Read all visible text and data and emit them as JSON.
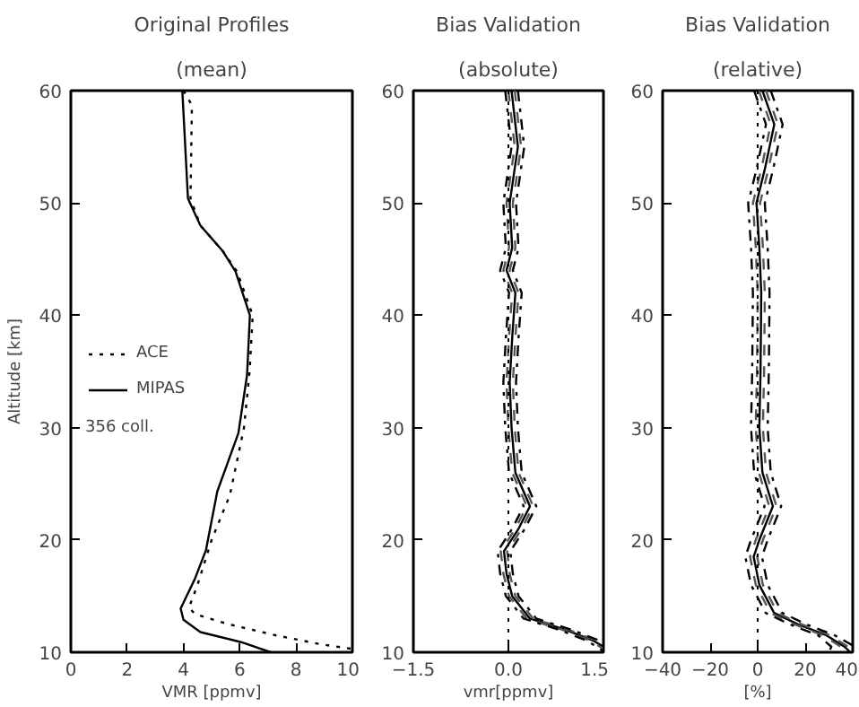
{
  "chart_data": [
    {
      "type": "line",
      "title": "Original Profiles",
      "subtitle": "(mean)",
      "xlabel": "VMR [ppmv]",
      "ylabel": "Altitude [km]",
      "xlim": [
        0,
        10
      ],
      "ylim": [
        10,
        60
      ],
      "xticks": [
        0,
        2,
        4,
        6,
        8,
        10
      ],
      "yticks": [
        10,
        20,
        30,
        40,
        50,
        60
      ],
      "legend": "left",
      "annotations": [
        "356 coll."
      ],
      "series": [
        {
          "name": "ACE",
          "color": "#000000",
          "line_style": "dotted",
          "x": [
            4.0,
            4.3,
            4.25,
            4.6,
            5.4,
            5.9,
            6.46,
            6.35,
            6.15,
            5.65,
            5.0,
            4.5,
            4.2,
            4.4,
            5.6,
            7.3,
            8.9,
            10.0
          ],
          "values": [
            60,
            58.7,
            50.4,
            48,
            45.7,
            43.9,
            40,
            35,
            30,
            24,
            20,
            16,
            14,
            13.4,
            12.5,
            11.5,
            10.7,
            10.3
          ]
        },
        {
          "name": "MIPAS",
          "color": "#000000",
          "line_style": "solid",
          "x": [
            3.96,
            4.16,
            4.6,
            5.4,
            5.85,
            6.36,
            6.26,
            5.95,
            5.2,
            5.0,
            4.8,
            4.4,
            3.9,
            4.0,
            4.6,
            6.05,
            7.1
          ],
          "values": [
            60,
            50.4,
            48,
            45.7,
            43.9,
            40,
            34.7,
            29.5,
            24.3,
            21.7,
            19.1,
            16.5,
            13.9,
            12.9,
            11.8,
            10.9,
            10
          ]
        }
      ]
    },
    {
      "type": "line",
      "title": "Bias Validation",
      "subtitle": "(absolute)",
      "xlabel": "vmr[ppmv]",
      "xlim": [
        -1.5,
        1.5
      ],
      "ylim": [
        10,
        60
      ],
      "xticks": [
        -1.5,
        {
          "value": 0,
          "label": "0.0"
        },
        1.5
      ],
      "yticks": [
        10,
        20,
        30,
        40,
        50,
        60
      ],
      "ref_lines": [
        {
          "axis": "x",
          "value": 0,
          "color": "#000000",
          "line_style": "dotted"
        }
      ],
      "series": [
        {
          "color": "#000000",
          "line_style": "solid",
          "x": [
            0.05,
            0.15,
            0.02,
            0.06,
            -0.03,
            0.11,
            0.06,
            0.02,
            0.05,
            0.11,
            0.34,
            0.16,
            -0.07,
            -0.03,
            0.06,
            0.34,
            0.9,
            1.35,
            1.5
          ],
          "values": [
            60,
            55,
            50,
            46,
            44,
            42,
            38,
            34,
            30,
            26,
            23,
            21,
            19,
            17,
            15,
            13,
            12,
            11,
            10.5
          ]
        },
        {
          "color": "#555555",
          "line_style": "dashed",
          "x": [
            0.1,
            0.2,
            0.07,
            0.11,
            0.02,
            0.16,
            0.11,
            0.07,
            0.1,
            0.16,
            0.39,
            0.21,
            -0.02,
            0.02,
            0.11,
            0.39,
            0.95,
            1.4,
            1.5
          ],
          "values": [
            60,
            55,
            50,
            46,
            44,
            42,
            38,
            34,
            30,
            26,
            23,
            21,
            19,
            17,
            15,
            13,
            12,
            11,
            10.7
          ]
        },
        {
          "color": "#555555",
          "line_style": "dashed",
          "x": [
            0.0,
            0.1,
            -0.03,
            0.01,
            -0.08,
            0.06,
            0.01,
            -0.03,
            0.0,
            0.06,
            0.29,
            0.11,
            -0.12,
            -0.08,
            0.01,
            0.29,
            0.85,
            1.3,
            1.5
          ],
          "values": [
            60,
            55,
            50,
            46,
            44,
            42,
            38,
            34,
            30,
            26,
            23,
            21,
            19,
            17,
            15,
            13,
            12,
            11,
            10.3
          ]
        },
        {
          "color": "#000000",
          "line_style": "dashdot",
          "x": [
            0.15,
            0.25,
            0.12,
            0.16,
            0.07,
            0.21,
            0.16,
            0.12,
            0.15,
            0.21,
            0.44,
            0.26,
            0.03,
            0.07,
            0.16,
            0.44,
            1.0,
            1.45,
            1.5
          ],
          "values": [
            60,
            55,
            50,
            46,
            44,
            42,
            38,
            34,
            30,
            26,
            23,
            21,
            19,
            17,
            15,
            13,
            12,
            11,
            10.9
          ]
        },
        {
          "color": "#000000",
          "line_style": "dashdot",
          "x": [
            -0.05,
            0.05,
            -0.08,
            -0.04,
            -0.13,
            0.01,
            -0.04,
            -0.08,
            -0.05,
            0.01,
            0.24,
            0.06,
            -0.17,
            -0.13,
            -0.04,
            0.24,
            0.8,
            1.25,
            1.5
          ],
          "values": [
            60,
            55,
            50,
            46,
            44,
            42,
            38,
            34,
            30,
            26,
            23,
            21,
            19,
            17,
            15,
            13,
            12,
            11,
            10.1
          ]
        }
      ]
    },
    {
      "type": "line",
      "title": "Bias Validation",
      "subtitle": "(relative)",
      "xlabel": "[%]",
      "xlim": [
        -40,
        40
      ],
      "ylim": [
        10,
        60
      ],
      "xticks": [
        -40,
        -20,
        0,
        20,
        40
      ],
      "yticks": [
        10,
        20,
        30,
        40,
        50,
        60
      ],
      "ref_lines": [
        {
          "axis": "x",
          "value": 0,
          "color": "#000000",
          "line_style": "dotted"
        }
      ],
      "series": [
        {
          "color": "#000000",
          "line_style": "solid",
          "x": [
            2,
            7,
            3,
            -0.5,
            0.7,
            1.5,
            1.2,
            0.7,
            2,
            6.4,
            0.7,
            -1.7,
            0.7,
            6.9,
            16.8,
            29,
            36.5,
            39
          ],
          "values": [
            60,
            57,
            53,
            50,
            46,
            42,
            35,
            30,
            26,
            23,
            20,
            18.5,
            16,
            13.5,
            12.5,
            11.5,
            10.5,
            10
          ]
        },
        {
          "color": "#555555",
          "line_style": "dashed",
          "x": [
            3.5,
            8.5,
            4.5,
            1,
            2.2,
            3,
            2.7,
            2.2,
            3.5,
            7.9,
            2.2,
            -0.2,
            2.2,
            8.4,
            18.3,
            30.5,
            38,
            40
          ],
          "values": [
            60,
            57,
            53,
            50,
            46,
            42,
            35,
            30,
            26,
            23,
            20,
            18.5,
            16,
            13.5,
            12.5,
            11.5,
            10.5,
            10.2
          ]
        },
        {
          "color": "#555555",
          "line_style": "dashed",
          "x": [
            0.5,
            5.5,
            1.5,
            -2,
            -0.8,
            0,
            -0.3,
            -0.8,
            0.5,
            4.9,
            -0.8,
            -3.2,
            -0.8,
            5.4,
            15.3,
            27.5,
            35,
            37.5
          ],
          "values": [
            60,
            57,
            53,
            50,
            46,
            42,
            35,
            30,
            26,
            23,
            20,
            18.5,
            16,
            13.5,
            12.5,
            11.5,
            10.5,
            10
          ]
        },
        {
          "color": "#000000",
          "line_style": "dashdot",
          "x": [
            5.5,
            10.5,
            6.5,
            3,
            4.2,
            5,
            4.7,
            4.2,
            5.5,
            9.9,
            4.2,
            1.8,
            4.2,
            10.4,
            20.3,
            32.5,
            40
          ],
          "values": [
            60,
            57,
            53,
            50,
            46,
            42,
            35,
            30,
            26,
            23,
            20,
            18.5,
            16,
            13.5,
            12.5,
            11.5,
            10.6
          ]
        },
        {
          "color": "#000000",
          "line_style": "dashdot",
          "x": [
            -1.5,
            3.5,
            -0.5,
            -4,
            -2.8,
            -2,
            -2.3,
            -2.8,
            -1.5,
            2.9,
            -2.8,
            -5.2,
            -2.8,
            3.4,
            13.3,
            25.5,
            31,
            30
          ],
          "values": [
            60,
            57,
            53,
            50,
            46,
            42,
            35,
            30,
            26,
            23,
            20,
            18.5,
            16,
            13.5,
            12.5,
            11.5,
            10.5,
            10
          ]
        }
      ]
    }
  ]
}
